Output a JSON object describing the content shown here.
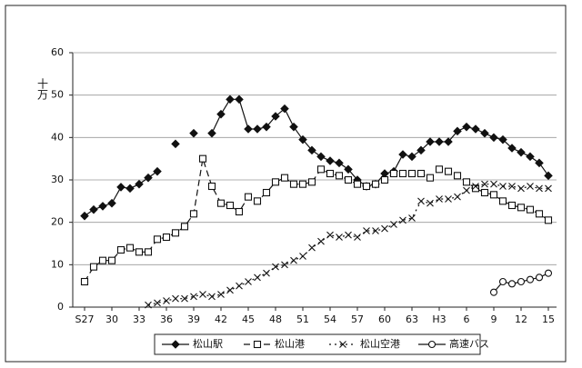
{
  "chart_data": {
    "type": "line",
    "y_label": "十万",
    "categories": [
      "S27",
      null,
      null,
      "30",
      null,
      null,
      "33",
      null,
      null,
      "36",
      null,
      null,
      "39",
      null,
      null,
      "42",
      null,
      null,
      "45",
      null,
      null,
      "48",
      null,
      null,
      "51",
      null,
      null,
      "54",
      null,
      null,
      "57",
      null,
      null,
      "60",
      null,
      null,
      "63",
      null,
      null,
      "H3",
      null,
      null,
      "6",
      null,
      null,
      "9",
      null,
      null,
      "12",
      null,
      null,
      "15"
    ],
    "series": [
      {
        "name": "松山駅",
        "color": "#111111",
        "marker": "diamond",
        "dash": "solid",
        "values": [
          21.5,
          23,
          23.8,
          24.5,
          28.3,
          28,
          29,
          30.5,
          32,
          null,
          38.5,
          null,
          41,
          null,
          41,
          45.5,
          49,
          49,
          42,
          42,
          42.5,
          45,
          46.8,
          42.5,
          39.5,
          37,
          35.5,
          34.5,
          34,
          32.5,
          30,
          28.5,
          29,
          31.5,
          32,
          36,
          35.5,
          37,
          39,
          39,
          39,
          41.5,
          42.5,
          42,
          41,
          40,
          39.5,
          37.5,
          36.5,
          35.5,
          34,
          31
        ]
      },
      {
        "name": "松山港",
        "color": "#111111",
        "marker": "square",
        "dash": "dashed",
        "values": [
          6,
          9.5,
          11,
          11,
          13.5,
          14,
          13,
          13,
          16,
          16.5,
          17.5,
          19,
          22,
          35,
          28.5,
          24.5,
          24,
          22.5,
          26,
          25,
          27,
          29.5,
          30.5,
          29,
          29,
          29.5,
          32.5,
          31.5,
          31,
          30,
          29,
          28.5,
          29,
          30,
          31.5,
          31.5,
          31.5,
          31.5,
          30.5,
          32.5,
          32,
          31,
          29.5,
          28,
          27,
          26.5,
          25,
          24,
          23.5,
          23,
          22,
          20.5
        ]
      },
      {
        "name": "松山空港",
        "color": "#111111",
        "marker": "cross",
        "dash": "dotted",
        "values": [
          null,
          null,
          null,
          null,
          null,
          null,
          null,
          0.5,
          1,
          1.5,
          2,
          2,
          2.5,
          3,
          2.5,
          3,
          4,
          5,
          6,
          7,
          8,
          9.5,
          10,
          11,
          12,
          14,
          15.5,
          17,
          16.5,
          17,
          16.5,
          18,
          18,
          18.5,
          19.5,
          20.5,
          21,
          25,
          24.5,
          25.5,
          25.5,
          26,
          27.5,
          28.5,
          29,
          29,
          28.5,
          28.5,
          28,
          28.5,
          28,
          28
        ]
      },
      {
        "name": "高速バス",
        "color": "#111111",
        "marker": "circle",
        "dash": "solid",
        "values": [
          null,
          null,
          null,
          null,
          null,
          null,
          null,
          null,
          null,
          null,
          null,
          null,
          null,
          null,
          null,
          null,
          null,
          null,
          null,
          null,
          null,
          null,
          null,
          null,
          null,
          null,
          null,
          null,
          null,
          null,
          null,
          null,
          null,
          null,
          null,
          null,
          null,
          null,
          null,
          null,
          null,
          null,
          null,
          null,
          null,
          3.5,
          6,
          5.5,
          6,
          6.5,
          7,
          8
        ]
      }
    ],
    "ylim": [
      0,
      60
    ],
    "yticks": [
      0,
      10,
      20,
      30,
      40,
      50,
      60
    ],
    "grid": true,
    "legend": "bottom"
  }
}
